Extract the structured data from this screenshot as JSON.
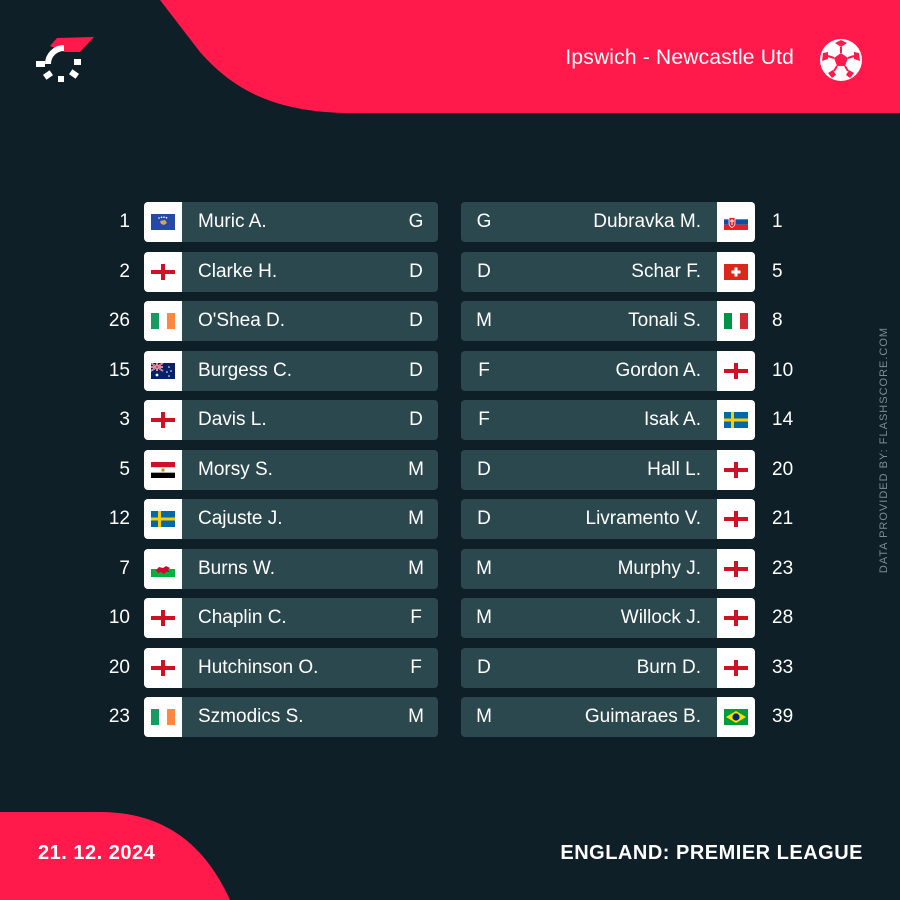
{
  "header": {
    "match_title": "Ipswich - Newcastle Utd",
    "logo_icon": "flashscore-logo-icon",
    "sport_icon": "soccer-ball-icon"
  },
  "colors": {
    "background": "#0f1f27",
    "accent": "#ff1a4b",
    "bar": "#2c484f",
    "flag_box": "#ffffff"
  },
  "home_team": [
    {
      "number": "1",
      "flag": "kosovo",
      "name": "Muric A.",
      "position": "G"
    },
    {
      "number": "2",
      "flag": "england",
      "name": "Clarke H.",
      "position": "D"
    },
    {
      "number": "26",
      "flag": "ireland",
      "name": "O'Shea D.",
      "position": "D"
    },
    {
      "number": "15",
      "flag": "australia",
      "name": "Burgess C.",
      "position": "D"
    },
    {
      "number": "3",
      "flag": "england",
      "name": "Davis L.",
      "position": "D"
    },
    {
      "number": "5",
      "flag": "egypt",
      "name": "Morsy S.",
      "position": "M"
    },
    {
      "number": "12",
      "flag": "sweden",
      "name": "Cajuste J.",
      "position": "M"
    },
    {
      "number": "7",
      "flag": "wales",
      "name": "Burns W.",
      "position": "M"
    },
    {
      "number": "10",
      "flag": "england",
      "name": "Chaplin C.",
      "position": "F"
    },
    {
      "number": "20",
      "flag": "england",
      "name": "Hutchinson O.",
      "position": "F"
    },
    {
      "number": "23",
      "flag": "ireland",
      "name": "Szmodics S.",
      "position": "M"
    }
  ],
  "away_team": [
    {
      "number": "1",
      "flag": "slovakia",
      "name": "Dubravka M.",
      "position": "G"
    },
    {
      "number": "5",
      "flag": "switzerland",
      "name": "Schar F.",
      "position": "D"
    },
    {
      "number": "8",
      "flag": "italy",
      "name": "Tonali S.",
      "position": "M"
    },
    {
      "number": "10",
      "flag": "england",
      "name": "Gordon A.",
      "position": "F"
    },
    {
      "number": "14",
      "flag": "sweden",
      "name": "Isak A.",
      "position": "F"
    },
    {
      "number": "20",
      "flag": "england",
      "name": "Hall L.",
      "position": "D"
    },
    {
      "number": "21",
      "flag": "england",
      "name": "Livramento V.",
      "position": "D"
    },
    {
      "number": "23",
      "flag": "england",
      "name": "Murphy J.",
      "position": "M"
    },
    {
      "number": "28",
      "flag": "england",
      "name": "Willock J.",
      "position": "M"
    },
    {
      "number": "33",
      "flag": "england",
      "name": "Burn D.",
      "position": "D"
    },
    {
      "number": "39",
      "flag": "brazil",
      "name": "Guimaraes B.",
      "position": "M"
    }
  ],
  "credit": "DATA PROVIDED BY: FLASHSCORE.COM",
  "footer": {
    "date": "21. 12. 2024",
    "league": "ENGLAND: PREMIER LEAGUE"
  }
}
